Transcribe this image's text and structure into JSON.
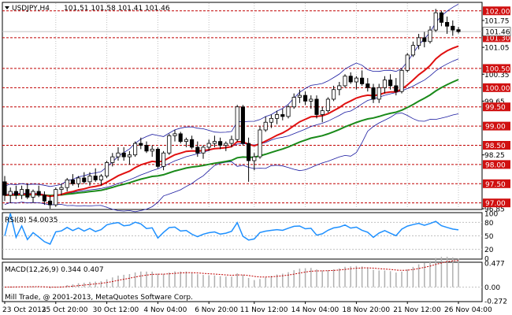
{
  "chart_data": {
    "type": "candlestick",
    "header": {
      "symbol_timeframe": "USDJPY,H4",
      "ohlc": "101.51 101.58 101.41 101.46"
    },
    "colors": {
      "background": "#ffffff",
      "grid": "#c0c0c0",
      "candle": "#000000",
      "level_line": "#c00000",
      "level_box": "#d01010",
      "ma_fast": "#e01010",
      "ma_slow": "#1a8a1a",
      "bollinger": "#1a1aa0",
      "rsi": "#1e90ff",
      "macd_hist": "#b0b0b0",
      "macd_signal": "#c00000",
      "current_price_line": "#c0c0c0"
    },
    "main_panel": {
      "ylim": [
        96.85,
        102.2
      ],
      "y_axis_ticks": [
        {
          "value": 101.75,
          "label": "101.75"
        },
        {
          "value": 101.05,
          "label": "101.05"
        },
        {
          "value": 100.35,
          "label": "100.35"
        },
        {
          "value": 99.65,
          "label": "99.65"
        },
        {
          "value": 98.25,
          "label": "98.25"
        },
        {
          "value": 96.85,
          "label": "96.85"
        }
      ],
      "levels": [
        {
          "value": 102.0,
          "label": "102.00"
        },
        {
          "value": 101.3,
          "label": "101.30"
        },
        {
          "value": 100.5,
          "label": "100.50"
        },
        {
          "value": 100.0,
          "label": "100.00"
        },
        {
          "value": 99.5,
          "label": "99.50"
        },
        {
          "value": 99.0,
          "label": "99.00"
        },
        {
          "value": 98.5,
          "label": "98.50"
        },
        {
          "value": 98.0,
          "label": "98.00"
        },
        {
          "value": 97.5,
          "label": "97.50"
        },
        {
          "value": 97.0,
          "label": "97.00"
        }
      ],
      "current_price": {
        "value": 101.46,
        "label": "101.46"
      },
      "candles_ohlc": [
        [
          97.55,
          97.7,
          97.05,
          97.2
        ],
        [
          97.2,
          97.4,
          97.0,
          97.3
        ],
        [
          97.3,
          97.45,
          97.1,
          97.2
        ],
        [
          97.2,
          97.45,
          97.1,
          97.35
        ],
        [
          97.35,
          97.5,
          97.1,
          97.15
        ],
        [
          97.15,
          97.35,
          97.0,
          97.3
        ],
        [
          97.3,
          97.45,
          97.15,
          97.2
        ],
        [
          97.2,
          97.3,
          96.95,
          97.05
        ],
        [
          97.05,
          97.2,
          96.85,
          96.95
        ],
        [
          96.95,
          97.4,
          96.9,
          97.35
        ],
        [
          97.35,
          97.5,
          97.2,
          97.4
        ],
        [
          97.4,
          97.65,
          97.3,
          97.6
        ],
        [
          97.6,
          97.75,
          97.45,
          97.5
        ],
        [
          97.5,
          97.7,
          97.4,
          97.65
        ],
        [
          97.65,
          97.8,
          97.5,
          97.55
        ],
        [
          97.55,
          97.8,
          97.45,
          97.7
        ],
        [
          97.7,
          97.9,
          97.55,
          97.6
        ],
        [
          97.6,
          97.75,
          97.45,
          97.7
        ],
        [
          97.7,
          98.1,
          97.65,
          98.05
        ],
        [
          98.05,
          98.3,
          97.95,
          98.2
        ],
        [
          98.2,
          98.45,
          98.1,
          98.3
        ],
        [
          98.3,
          98.45,
          98.1,
          98.2
        ],
        [
          98.2,
          98.35,
          98.0,
          98.25
        ],
        [
          98.25,
          98.6,
          98.2,
          98.55
        ],
        [
          98.55,
          98.7,
          98.4,
          98.5
        ],
        [
          98.5,
          98.6,
          98.3,
          98.35
        ],
        [
          98.35,
          98.5,
          98.2,
          98.4
        ],
        [
          98.4,
          98.45,
          97.9,
          97.95
        ],
        [
          97.95,
          98.35,
          97.85,
          98.3
        ],
        [
          98.3,
          98.8,
          98.25,
          98.75
        ],
        [
          98.75,
          98.9,
          98.6,
          98.8
        ],
        [
          98.8,
          98.85,
          98.55,
          98.6
        ],
        [
          98.6,
          98.7,
          98.45,
          98.65
        ],
        [
          98.65,
          98.75,
          98.4,
          98.45
        ],
        [
          98.45,
          98.6,
          98.2,
          98.3
        ],
        [
          98.3,
          98.5,
          98.15,
          98.45
        ],
        [
          98.45,
          98.65,
          98.35,
          98.55
        ],
        [
          98.55,
          98.75,
          98.45,
          98.6
        ],
        [
          98.6,
          98.7,
          98.4,
          98.5
        ],
        [
          98.5,
          98.6,
          98.35,
          98.55
        ],
        [
          98.55,
          98.75,
          98.45,
          98.65
        ],
        [
          98.65,
          99.55,
          98.6,
          99.5
        ],
        [
          99.5,
          99.55,
          98.5,
          98.55
        ],
        [
          98.55,
          98.7,
          97.55,
          98.1
        ],
        [
          98.1,
          98.3,
          97.85,
          98.2
        ],
        [
          98.2,
          99.0,
          98.15,
          98.9
        ],
        [
          98.9,
          99.25,
          98.85,
          99.1
        ],
        [
          99.1,
          99.3,
          98.95,
          99.2
        ],
        [
          99.2,
          99.4,
          99.05,
          99.3
        ],
        [
          99.3,
          99.45,
          99.15,
          99.25
        ],
        [
          99.25,
          99.55,
          99.2,
          99.5
        ],
        [
          99.5,
          99.85,
          99.45,
          99.75
        ],
        [
          99.75,
          99.95,
          99.6,
          99.8
        ],
        [
          99.8,
          99.9,
          99.55,
          99.65
        ],
        [
          99.65,
          99.8,
          99.45,
          99.7
        ],
        [
          99.7,
          99.8,
          99.2,
          99.3
        ],
        [
          99.3,
          99.5,
          99.1,
          99.4
        ],
        [
          99.4,
          99.75,
          99.35,
          99.7
        ],
        [
          99.7,
          100.05,
          99.65,
          99.95
        ],
        [
          99.95,
          100.15,
          99.8,
          100.05
        ],
        [
          100.05,
          100.35,
          100.0,
          100.3
        ],
        [
          100.3,
          100.4,
          100.1,
          100.15
        ],
        [
          100.15,
          100.3,
          99.95,
          100.25
        ],
        [
          100.25,
          100.45,
          100.05,
          100.1
        ],
        [
          100.1,
          100.25,
          99.9,
          100.0
        ],
        [
          100.0,
          100.1,
          99.6,
          99.7
        ],
        [
          99.7,
          100.1,
          99.6,
          100.0
        ],
        [
          100.0,
          100.3,
          99.85,
          100.2
        ],
        [
          100.2,
          100.35,
          99.95,
          100.05
        ],
        [
          100.05,
          100.25,
          99.8,
          99.9
        ],
        [
          99.9,
          100.5,
          99.85,
          100.45
        ],
        [
          100.45,
          100.9,
          100.4,
          100.85
        ],
        [
          100.85,
          101.2,
          100.8,
          101.1
        ],
        [
          101.1,
          101.4,
          101.0,
          101.3
        ],
        [
          101.3,
          101.45,
          101.05,
          101.2
        ],
        [
          101.2,
          101.6,
          101.15,
          101.5
        ],
        [
          101.5,
          102.05,
          101.45,
          101.95
        ],
        [
          101.95,
          102.0,
          101.6,
          101.7
        ],
        [
          101.7,
          101.85,
          101.4,
          101.6
        ],
        [
          101.6,
          101.75,
          101.35,
          101.5
        ],
        [
          101.51,
          101.58,
          101.41,
          101.46
        ]
      ]
    },
    "rsi_panel": {
      "label": "RSI(8) 54.0035",
      "period": 8,
      "ylim": [
        0,
        100
      ],
      "y_axis_ticks": [
        {
          "value": 100,
          "label": "100"
        },
        {
          "value": 80,
          "label": "80"
        },
        {
          "value": 50,
          "label": "50"
        },
        {
          "value": 20,
          "label": "20"
        },
        {
          "value": 0,
          "label": "0"
        }
      ]
    },
    "macd_panel": {
      "label": "MACD(12,26,9) 0.344 0.407",
      "params": [
        12,
        26,
        9
      ],
      "ylim": [
        -0.272,
        0.477
      ],
      "y_axis_ticks": [
        {
          "value": 0.477,
          "label": "0.477"
        },
        {
          "value": 0.0,
          "label": "0.00"
        },
        {
          "value": -0.272,
          "label": "-0.272"
        }
      ]
    },
    "x_axis_labels": [
      "23 Oct 2013",
      "25 Oct 20:00",
      "30 Oct 12:00",
      "4 Nov 04:00",
      "6 Nov 20:00",
      "11 Nov 12:00",
      "14 Nov 04:00",
      "18 Nov 20:00",
      "21 Nov 12:00",
      "26 Nov 04:00"
    ],
    "watermark": "Mill Trade, @ 2001-2013, MetaQuotes Software Corp."
  }
}
